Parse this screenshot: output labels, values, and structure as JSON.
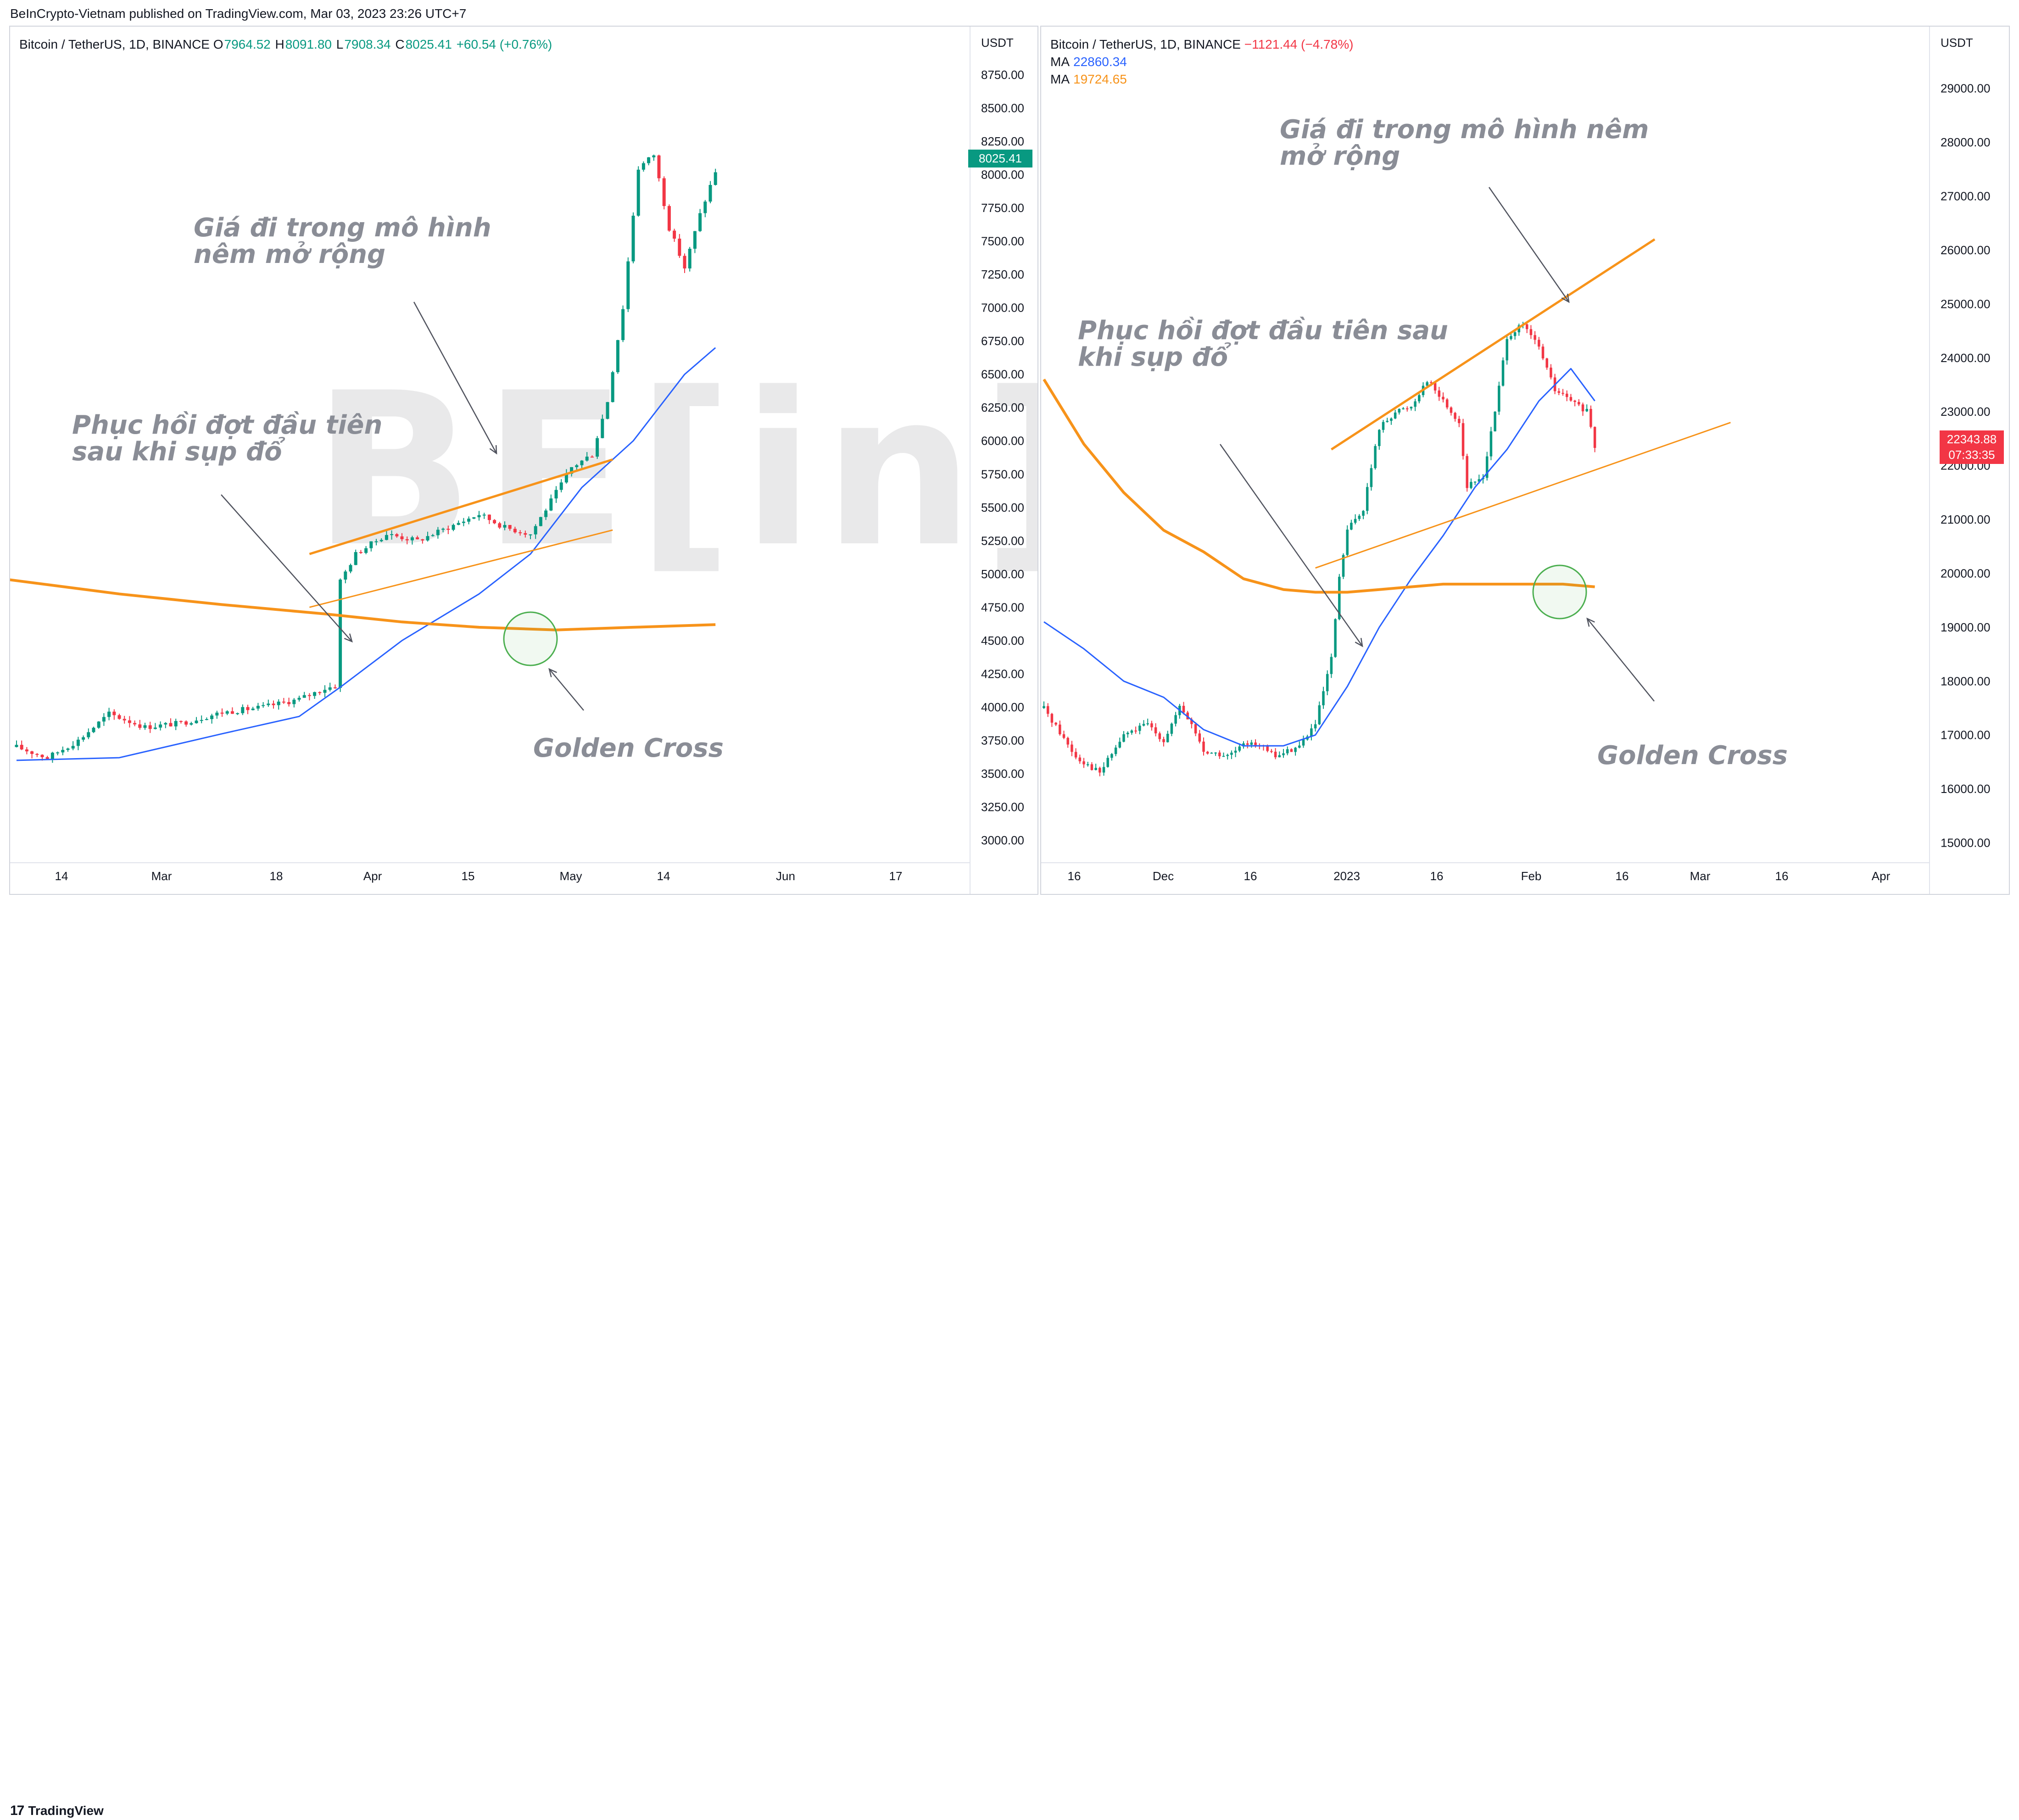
{
  "header": {
    "publisher": "BeInCrypto-Vietnam published on TradingView.com, Mar 03, 2023 23:26 UTC+7"
  },
  "footer": {
    "logo_text": "TradingView",
    "logo_glyph": "17"
  },
  "watermark": "BE[in]CRYPTO",
  "colors": {
    "up": "#089981",
    "down": "#f23645",
    "ma_fast": "#2962ff",
    "ma_slow": "#f7931a",
    "wedge": "#f7931a",
    "circle": "#4caf50",
    "annotation": "#8a8d96",
    "axis_text": "#131722"
  },
  "left": {
    "legend": {
      "symbol": "Bitcoin / TetherUS, 1D, BINANCE",
      "o_label": "O",
      "o": "7964.52",
      "h_label": "H",
      "h": "8091.80",
      "l_label": "L",
      "l": "7908.34",
      "c_label": "C",
      "c": "8025.41",
      "change": "+60.54 (+0.76%)"
    },
    "currency": "USDT",
    "last_price": "8025.41",
    "annot_wedge": "Giá đi trong mô hình\nnêm mở rộng",
    "annot_recovery": "Phục hồi đợt đầu tiên\nsau khi sụp đổ",
    "annot_cross": "Golden Cross"
  },
  "right": {
    "legend": {
      "symbol": "Bitcoin / TetherUS, 1D, BINANCE",
      "change": "−1121.44 (−4.78%)",
      "ma1_label": "MA",
      "ma1": "22860.34",
      "ma2_label": "MA",
      "ma2": "19724.65"
    },
    "currency": "USDT",
    "last_price": "22343.88",
    "countdown": "07:33:35",
    "annot_wedge": "Giá đi trong mô hình nêm\nmở rộng",
    "annot_recovery": "Phục hồi đợt đầu tiên sau\nkhi sụp đổ",
    "annot_cross": "Golden Cross"
  },
  "chart_data": [
    {
      "type": "candlestick",
      "title": "Bitcoin / TetherUS, 1D, BINANCE",
      "ylabel": "USDT",
      "ylim": [
        2900,
        8850
      ],
      "yticks": [
        "8750.00",
        "8500.00",
        "8250.00",
        "8000.00",
        "7750.00",
        "7500.00",
        "7250.00",
        "7000.00",
        "6750.00",
        "6500.00",
        "6250.00",
        "6000.00",
        "5750.00",
        "5500.00",
        "5250.00",
        "5000.00",
        "4750.00",
        "4500.00",
        "4250.00",
        "4000.00",
        "3750.00",
        "3500.00",
        "3250.00",
        "3000.00"
      ],
      "xticks": [
        "14",
        "Mar",
        "18",
        "Apr",
        "15",
        "May",
        "14",
        "Jun",
        "17"
      ],
      "seed_close": 3700,
      "keypoints": [
        [
          0,
          3700
        ],
        [
          6,
          3620
        ],
        [
          12,
          3750
        ],
        [
          18,
          3950
        ],
        [
          25,
          3850
        ],
        [
          32,
          3880
        ],
        [
          40,
          3960
        ],
        [
          48,
          4000
        ],
        [
          55,
          4060
        ],
        [
          60,
          4140
        ],
        [
          62,
          4160
        ],
        [
          63,
          4950
        ],
        [
          66,
          5150
        ],
        [
          72,
          5300
        ],
        [
          78,
          5250
        ],
        [
          84,
          5350
        ],
        [
          90,
          5450
        ],
        [
          95,
          5350
        ],
        [
          100,
          5300
        ],
        [
          104,
          5550
        ],
        [
          108,
          5800
        ],
        [
          112,
          5900
        ],
        [
          115,
          6300
        ],
        [
          118,
          7000
        ],
        [
          121,
          8050
        ],
        [
          124,
          8150
        ],
        [
          127,
          7600
        ],
        [
          130,
          7300
        ],
        [
          133,
          7700
        ],
        [
          136,
          8025
        ]
      ],
      "ma_fast": [
        [
          0,
          3600
        ],
        [
          20,
          3620
        ],
        [
          40,
          3800
        ],
        [
          55,
          3930
        ],
        [
          63,
          4150
        ],
        [
          75,
          4500
        ],
        [
          90,
          4850
        ],
        [
          100,
          5150
        ],
        [
          110,
          5650
        ],
        [
          120,
          6000
        ],
        [
          130,
          6500
        ],
        [
          136,
          6700
        ]
      ],
      "ma_slow": [
        [
          -40,
          5150
        ],
        [
          0,
          4950
        ],
        [
          20,
          4850
        ],
        [
          40,
          4770
        ],
        [
          60,
          4700
        ],
        [
          75,
          4640
        ],
        [
          90,
          4600
        ],
        [
          105,
          4580
        ],
        [
          120,
          4600
        ],
        [
          136,
          4620
        ]
      ],
      "wedge_upper": [
        [
          57,
          5150
        ],
        [
          116,
          5860
        ]
      ],
      "wedge_lower": [
        [
          57,
          4750
        ],
        [
          116,
          5330
        ]
      ]
    },
    {
      "type": "candlestick",
      "title": "Bitcoin / TetherUS, 1D, BINANCE",
      "ylabel": "USDT",
      "ylim": [
        14800,
        29500
      ],
      "yticks": [
        "29000.00",
        "28000.00",
        "27000.00",
        "26000.00",
        "25000.00",
        "24000.00",
        "23000.00",
        "22000.00",
        "21000.00",
        "20000.00",
        "19000.00",
        "18000.00",
        "17000.00",
        "16000.00",
        "15000.00"
      ],
      "xticks": [
        "16",
        "Dec",
        "16",
        "2023",
        "16",
        "Feb",
        "16",
        "Mar",
        "16",
        "Apr"
      ],
      "seed_close": 17500,
      "keypoints": [
        [
          0,
          17500
        ],
        [
          8,
          16600
        ],
        [
          14,
          16300
        ],
        [
          20,
          17000
        ],
        [
          26,
          17200
        ],
        [
          30,
          16900
        ],
        [
          34,
          17500
        ],
        [
          37,
          17200
        ],
        [
          40,
          16700
        ],
        [
          46,
          16600
        ],
        [
          52,
          16900
        ],
        [
          58,
          16600
        ],
        [
          64,
          16800
        ],
        [
          68,
          17200
        ],
        [
          72,
          18400
        ],
        [
          74,
          19900
        ],
        [
          76,
          20800
        ],
        [
          80,
          21200
        ],
        [
          84,
          22700
        ],
        [
          88,
          23000
        ],
        [
          92,
          23100
        ],
        [
          96,
          23600
        ],
        [
          100,
          23200
        ],
        [
          104,
          22800
        ],
        [
          106,
          21600
        ],
        [
          110,
          21800
        ],
        [
          113,
          23000
        ],
        [
          116,
          24400
        ],
        [
          120,
          24600
        ],
        [
          124,
          24200
        ],
        [
          128,
          23400
        ],
        [
          132,
          23200
        ],
        [
          136,
          23000
        ],
        [
          138,
          22343
        ]
      ],
      "ma_fast": [
        [
          0,
          19100
        ],
        [
          10,
          18600
        ],
        [
          20,
          18000
        ],
        [
          30,
          17700
        ],
        [
          40,
          17100
        ],
        [
          50,
          16800
        ],
        [
          60,
          16800
        ],
        [
          68,
          17000
        ],
        [
          76,
          17900
        ],
        [
          84,
          19000
        ],
        [
          92,
          19900
        ],
        [
          100,
          20700
        ],
        [
          108,
          21600
        ],
        [
          116,
          22300
        ],
        [
          124,
          23200
        ],
        [
          132,
          23800
        ],
        [
          138,
          23200
        ]
      ],
      "ma_slow": [
        [
          0,
          23600
        ],
        [
          10,
          22400
        ],
        [
          20,
          21500
        ],
        [
          30,
          20800
        ],
        [
          40,
          20400
        ],
        [
          50,
          19900
        ],
        [
          60,
          19700
        ],
        [
          68,
          19650
        ],
        [
          76,
          19650
        ],
        [
          84,
          19700
        ],
        [
          92,
          19750
        ],
        [
          100,
          19800
        ],
        [
          110,
          19800
        ],
        [
          120,
          19800
        ],
        [
          130,
          19800
        ],
        [
          138,
          19750
        ]
      ],
      "wedge_upper": [
        [
          72,
          22300
        ],
        [
          153,
          26200
        ]
      ],
      "wedge_lower": [
        [
          68,
          20100
        ],
        [
          172,
          22800
        ]
      ]
    }
  ]
}
